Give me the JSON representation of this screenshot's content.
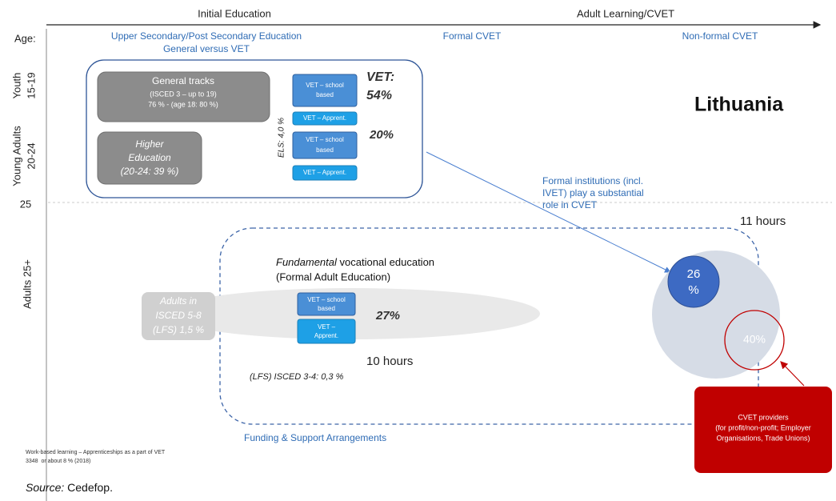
{
  "header": {
    "initial_education": "Initial Education",
    "adult_learning": "Adult Learning/CVET",
    "age": "Age:",
    "upper_secondary": [
      "Upper Secondary/Post Secondary Education",
      "General versus VET"
    ],
    "formal_cvet": "Formal CVET",
    "nonformal_cvet": "Non-formal CVET"
  },
  "age_labels": {
    "youth": [
      "Youth",
      "15-19"
    ],
    "young_adults": [
      "Young Adults",
      "20-24"
    ],
    "age_25": "25",
    "adults": "Adults 25+"
  },
  "youth_box": {
    "general_tracks": [
      "General tracks",
      "(ISCED 3 – up to 19)",
      "76 % - (age 18: 80 %)"
    ],
    "higher_education": [
      "Higher",
      "Education",
      "(20-24: 39 %)"
    ],
    "vet_boxes": [
      [
        "VET – school",
        "based"
      ],
      "VET – Apprent.",
      [
        "VET – school",
        "based"
      ],
      "VET – Apprent."
    ],
    "els": "ELS: 4,0 %",
    "vet_label": "VET:",
    "vet_share": "54%",
    "second_share": "20%"
  },
  "country": "Lithuania",
  "note": [
    "Formal institutions (incl.",
    "IVET) play a substantial",
    "role in CVET"
  ],
  "hours_cvet": "11 hours",
  "adult_box": {
    "title_italic": "Fundamental",
    "title_rest": " vocational education",
    "subtitle": "(Formal Adult Education)",
    "adults_isced": [
      "Adults in",
      "ISCED 5-8",
      "(LFS) 1,5 %"
    ],
    "vet_boxes": [
      [
        "VET – school",
        "based"
      ],
      [
        "VET –",
        "Apprent."
      ]
    ],
    "share": "27%",
    "hours": "10 hours",
    "lfs": "(LFS) ISCED 3-4: 0,3 %",
    "funding": "Funding & Support Arrangements"
  },
  "circles": {
    "formal": [
      "26",
      "%"
    ],
    "nonformal": "40%"
  },
  "providers": [
    "CVET providers",
    "(for profit/non-profit; Employer",
    "Organisations, Trade Unions)"
  ],
  "footnote": [
    "Work-based learning – Apprenticeships as a part of VET",
    "3348  or about 8 % (2018)"
  ],
  "source": {
    "label": "Source:",
    "text": " Cedefop."
  }
}
